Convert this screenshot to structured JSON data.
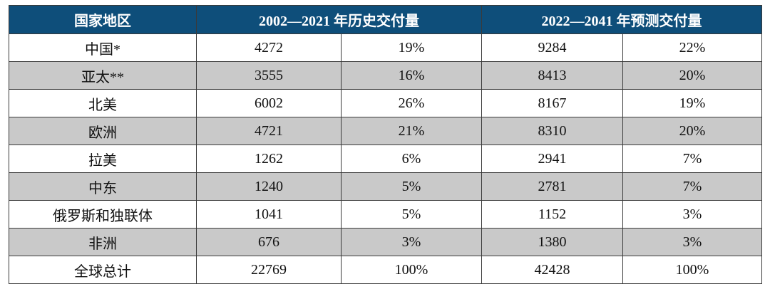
{
  "table": {
    "header": [
      "国家地区",
      "2002—2021 年历史交付量",
      "2022—2041 年预测交付量"
    ],
    "rows": [
      [
        "中国*",
        "4272",
        "19%",
        "9284",
        "22%"
      ],
      [
        "亚太**",
        "3555",
        "16%",
        "8413",
        "20%"
      ],
      [
        "北美",
        "6002",
        "26%",
        "8167",
        "19%"
      ],
      [
        "欧洲",
        "4721",
        "21%",
        "8310",
        "20%"
      ],
      [
        "拉美",
        "1262",
        "6%",
        "2941",
        "7%"
      ],
      [
        "中东",
        "1240",
        "5%",
        "2781",
        "7%"
      ],
      [
        "俄罗斯和独联体",
        "1041",
        "5%",
        "1152",
        "3%"
      ],
      [
        "非洲",
        "676",
        "3%",
        "1380",
        "3%"
      ],
      [
        "全球总计",
        "22769",
        "100%",
        "42428",
        "100%"
      ]
    ]
  }
}
